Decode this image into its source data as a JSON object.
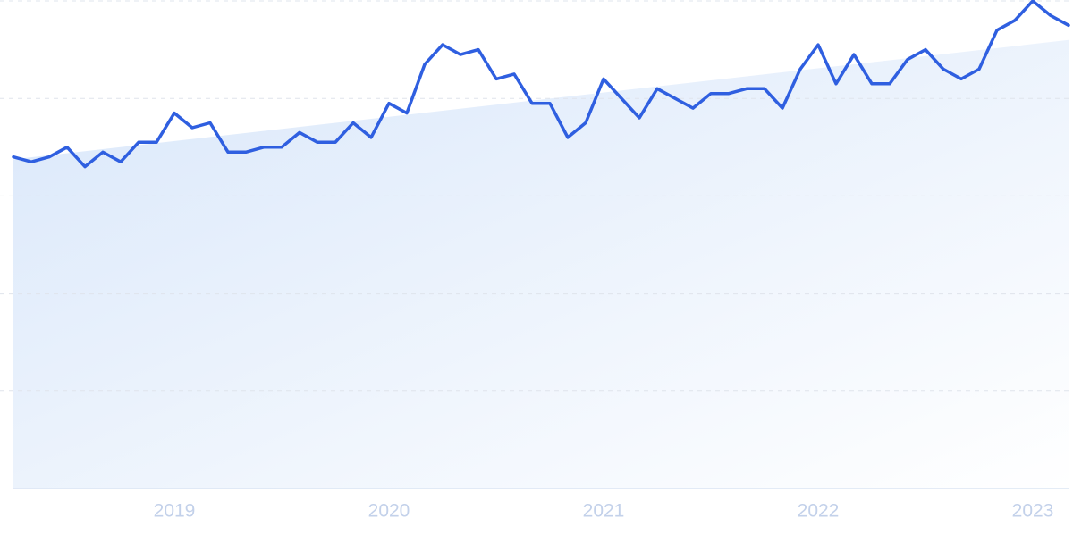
{
  "chart_data": {
    "type": "line",
    "categories": [
      null,
      null,
      null,
      null,
      null,
      null,
      null,
      null,
      null,
      "2019",
      null,
      null,
      null,
      null,
      null,
      null,
      null,
      null,
      null,
      null,
      null,
      "2020",
      null,
      null,
      null,
      null,
      null,
      null,
      null,
      null,
      null,
      null,
      null,
      "2021",
      null,
      null,
      null,
      null,
      null,
      null,
      null,
      null,
      null,
      null,
      null,
      "2022",
      null,
      null,
      null,
      null,
      null,
      null,
      null,
      null,
      null,
      null,
      null,
      "2023",
      null,
      null
    ],
    "values": [
      68,
      67,
      68,
      70,
      66,
      69,
      67,
      71,
      71,
      77,
      74,
      75,
      69,
      69,
      70,
      70,
      73,
      71,
      71,
      75,
      72,
      79,
      77,
      87,
      91,
      89,
      90,
      84,
      85,
      79,
      79,
      72,
      75,
      84,
      80,
      76,
      82,
      80,
      78,
      81,
      81,
      82,
      82,
      78,
      86,
      91,
      83,
      89,
      83,
      83,
      88,
      90,
      86,
      84,
      86,
      94,
      96,
      100,
      97,
      95
    ],
    "color": "#2f5fe0",
    "ylim": [
      0,
      100
    ],
    "yticks": [
      0,
      20,
      40,
      60,
      80,
      100
    ],
    "grid": true
  }
}
